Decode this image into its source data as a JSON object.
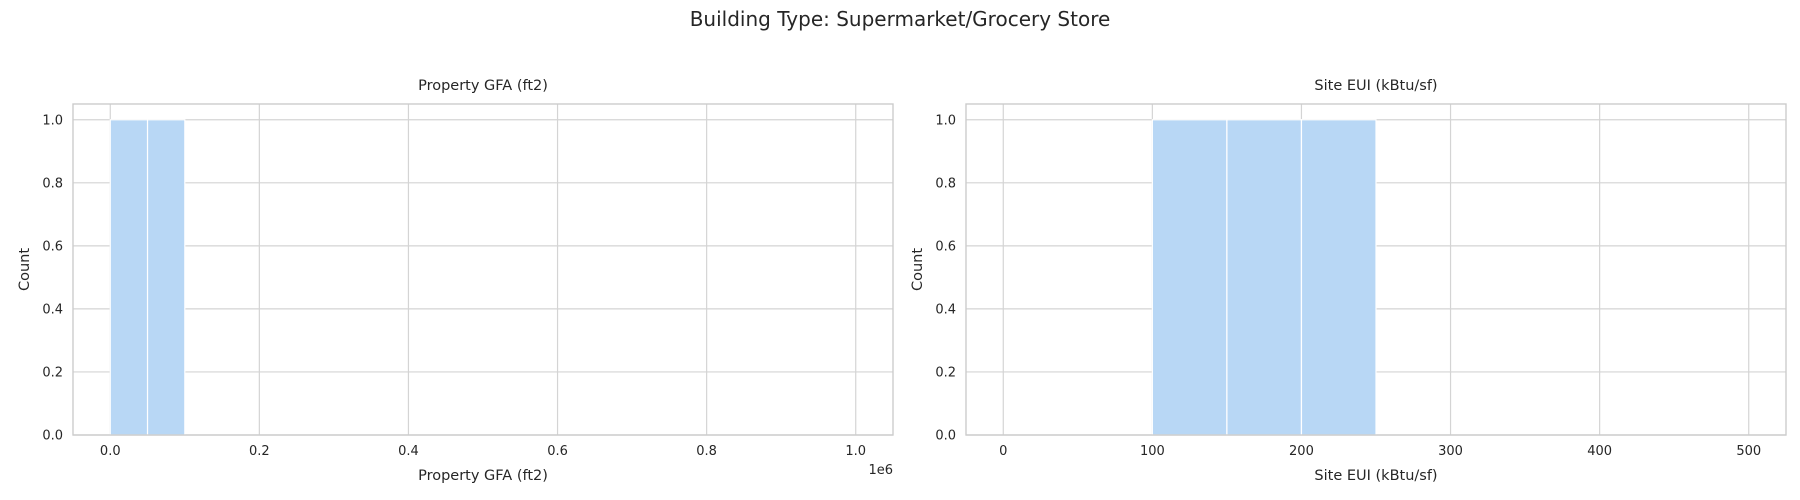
{
  "figure": {
    "suptitle": "Building Type: Supermarket/Grocery Store"
  },
  "chart_data": [
    {
      "type": "bar",
      "title": "Property GFA (ft2)",
      "xlabel": "Property GFA (ft2)",
      "ylabel": "Count",
      "x_offset_label": "1e6",
      "xlim": [
        -50000,
        1050000
      ],
      "ylim": [
        0,
        1.05
      ],
      "xticks": [
        0,
        200000,
        400000,
        600000,
        800000,
        1000000
      ],
      "xtick_labels": [
        "0.0",
        "0.2",
        "0.4",
        "0.6",
        "0.8",
        "1.0"
      ],
      "yticks": [
        0,
        0.2,
        0.4,
        0.6,
        0.8,
        1.0
      ],
      "ytick_labels": [
        "0.0",
        "0.2",
        "0.4",
        "0.6",
        "0.8",
        "1.0"
      ],
      "grid": true,
      "color": "#b8d7f5",
      "bins": [
        {
          "start": 0,
          "end": 50000,
          "count": 1
        },
        {
          "start": 50000,
          "end": 100000,
          "count": 1
        }
      ]
    },
    {
      "type": "bar",
      "title": "Site EUI (kBtu/sf)",
      "xlabel": "Site EUI (kBtu/sf)",
      "ylabel": "Count",
      "xlim": [
        -25,
        525
      ],
      "ylim": [
        0,
        1.05
      ],
      "xticks": [
        0,
        100,
        200,
        300,
        400,
        500
      ],
      "xtick_labels": [
        "0",
        "100",
        "200",
        "300",
        "400",
        "500"
      ],
      "yticks": [
        0,
        0.2,
        0.4,
        0.6,
        0.8,
        1.0
      ],
      "ytick_labels": [
        "0.0",
        "0.2",
        "0.4",
        "0.6",
        "0.8",
        "1.0"
      ],
      "grid": true,
      "color": "#b8d7f5",
      "bins": [
        {
          "start": 100,
          "end": 150,
          "count": 1
        },
        {
          "start": 150,
          "end": 200,
          "count": 1
        },
        {
          "start": 200,
          "end": 250,
          "count": 1
        }
      ]
    }
  ]
}
